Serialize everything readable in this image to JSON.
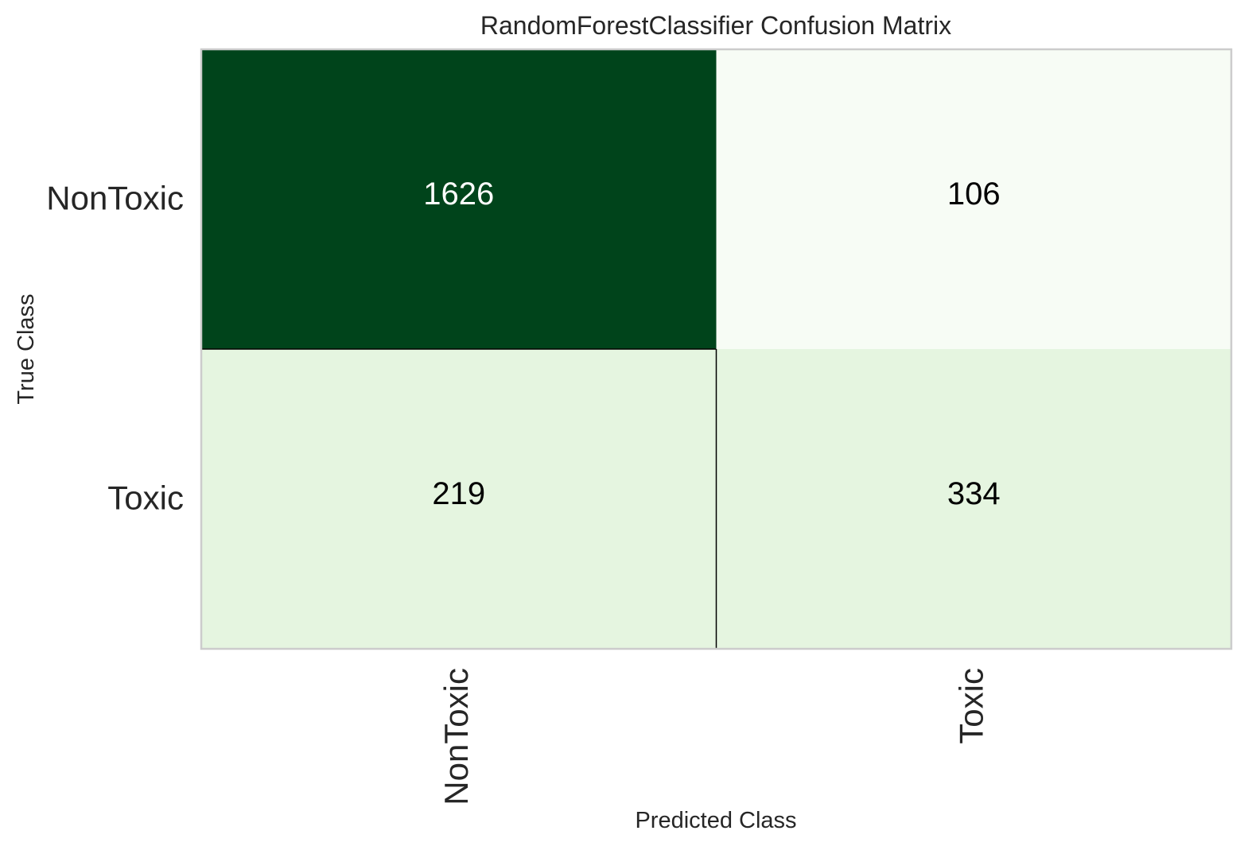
{
  "chart_data": {
    "type": "heatmap",
    "title": "RandomForestClassifier Confusion Matrix",
    "xlabel": "Predicted Class",
    "ylabel": "True Class",
    "x_categories": [
      "NonToxic",
      "Toxic"
    ],
    "y_categories": [
      "NonToxic",
      "Toxic"
    ],
    "values": [
      [
        1626,
        106
      ],
      [
        219,
        334
      ]
    ],
    "cell_colors": [
      [
        "#00441b",
        "#f7fcf5"
      ],
      [
        "#e5f5e0",
        "#e5f5e0"
      ]
    ],
    "cell_text_colors": [
      [
        "#ffffff",
        "#000000"
      ],
      [
        "#000000",
        "#000000"
      ]
    ],
    "grid": false,
    "legend": "none"
  }
}
